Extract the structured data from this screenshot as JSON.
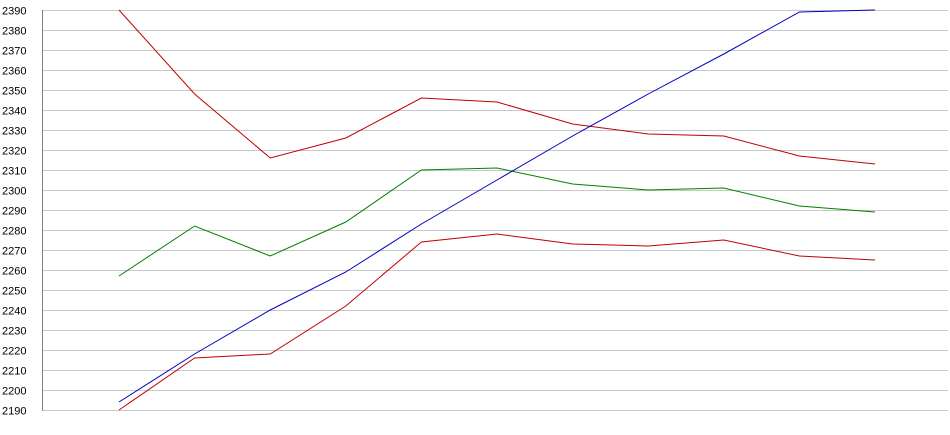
{
  "chart_data": {
    "type": "line",
    "title": "",
    "xlabel": "",
    "ylabel": "",
    "ylim": [
      2190,
      2390
    ],
    "yticks": [
      2190,
      2200,
      2210,
      2220,
      2230,
      2240,
      2250,
      2260,
      2270,
      2280,
      2290,
      2300,
      2310,
      2320,
      2330,
      2340,
      2350,
      2360,
      2370,
      2380,
      2390
    ],
    "grid": true,
    "legend": "none",
    "x": [
      1,
      2,
      3,
      4,
      5,
      6,
      7,
      8,
      9,
      10,
      11
    ],
    "series": [
      {
        "color": "#c00000",
        "values": [
          2390,
          2348,
          2316,
          2326,
          2346,
          2344,
          2333,
          2328,
          2327,
          2317,
          2313
        ]
      },
      {
        "color": "#008000",
        "values": [
          2257,
          2282,
          2267,
          2284,
          2310,
          2311,
          2303,
          2300,
          2301,
          2292,
          2289
        ]
      },
      {
        "color": "#0000c0",
        "values": [
          2194,
          2218,
          2240,
          2259,
          2283,
          2305,
          2327,
          2348,
          2368,
          2389,
          2390
        ]
      },
      {
        "color": "#c00000",
        "values": [
          2190,
          2216,
          2218,
          2242,
          2274,
          2278,
          2273,
          2272,
          2275,
          2267,
          2265
        ]
      }
    ]
  }
}
